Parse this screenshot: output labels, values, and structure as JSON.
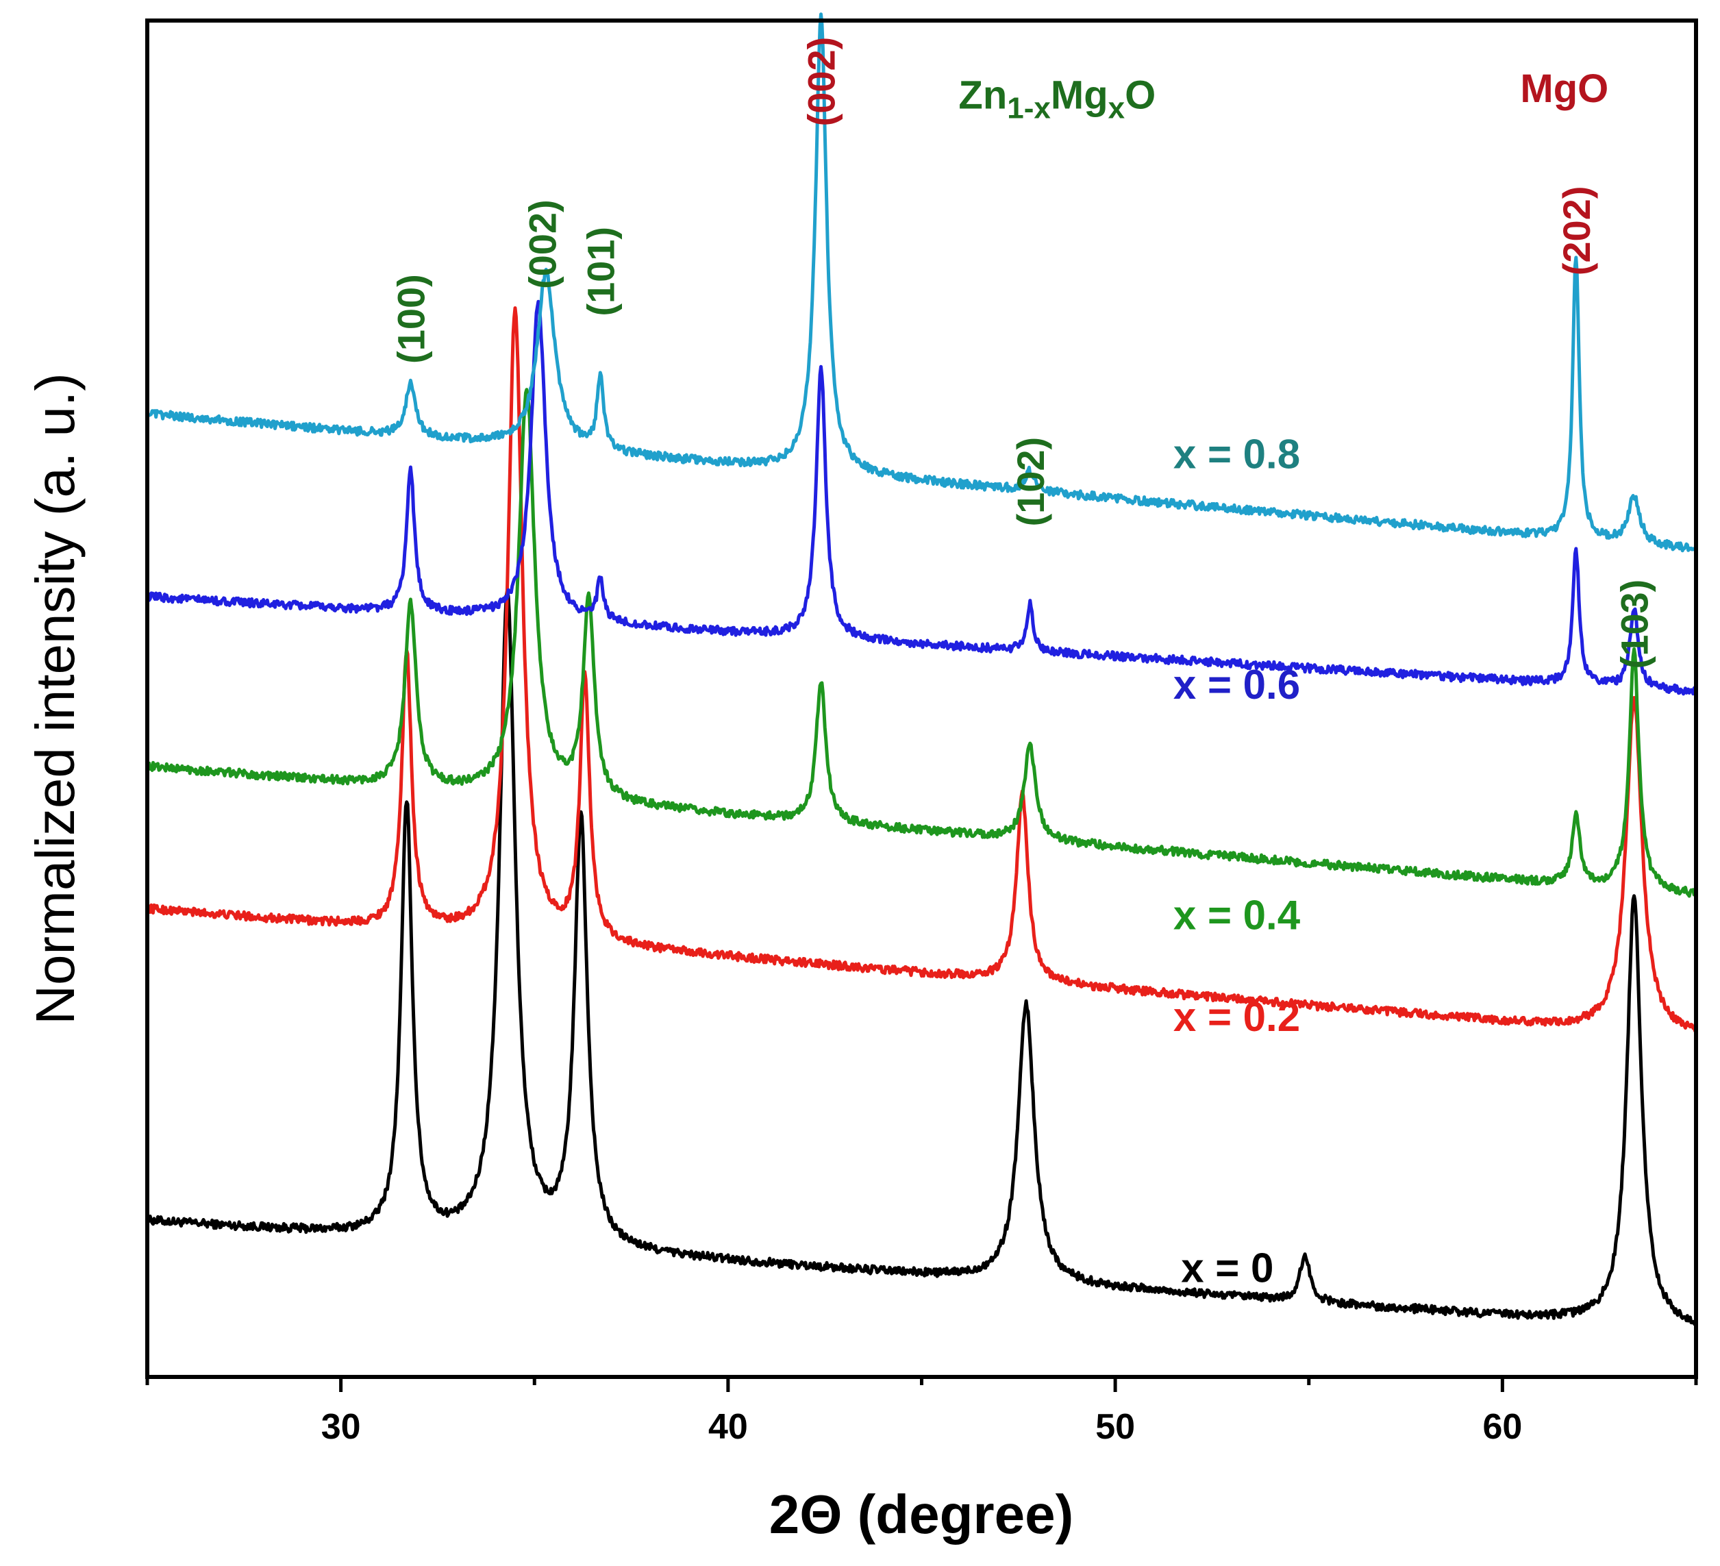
{
  "chart_data": {
    "type": "line",
    "title": "",
    "xlabel": "2Θ (degree)",
    "ylabel": "Normalized intensity (a. u.)",
    "xlim": [
      25,
      65
    ],
    "x_ticks": [
      30,
      40,
      50,
      60
    ],
    "grid": false,
    "legend": "none",
    "baseline_range": [
      0,
      10
    ],
    "series": [
      {
        "name": "x = 0",
        "color": "#000000",
        "baseline": [
          1.15,
          0.35
        ],
        "peaks": [
          [
            31.7,
            3.2,
            0.35
          ],
          [
            34.3,
            4.8,
            0.5
          ],
          [
            36.2,
            3.15,
            0.4
          ],
          [
            47.7,
            2.05,
            0.5
          ],
          [
            54.9,
            0.35,
            0.3
          ],
          [
            63.4,
            3.15,
            0.45
          ]
        ]
      },
      {
        "name": "x = 0.2",
        "color": "#e8201a",
        "baseline": [
          3.45,
          2.5
        ],
        "peaks": [
          [
            31.7,
            2.05,
            0.3
          ],
          [
            34.5,
            4.65,
            0.45
          ],
          [
            36.3,
            1.95,
            0.3
          ],
          [
            47.6,
            1.4,
            0.35
          ],
          [
            63.4,
            2.45,
            0.5
          ]
        ]
      },
      {
        "name": "x = 0.4",
        "color": "#1e961e",
        "baseline": [
          4.5,
          3.55
        ],
        "peaks": [
          [
            31.8,
            1.35,
            0.35
          ],
          [
            34.8,
            3.0,
            0.5
          ],
          [
            36.4,
            1.45,
            0.35
          ],
          [
            42.4,
            1.05,
            0.3
          ],
          [
            47.8,
            0.7,
            0.35
          ],
          [
            61.9,
            0.5,
            0.25
          ],
          [
            63.4,
            1.75,
            0.3
          ]
        ]
      },
      {
        "name": "x = 0.6",
        "color": "#2020e0",
        "baseline": [
          5.75,
          5.05
        ],
        "peaks": [
          [
            31.8,
            1.05,
            0.25
          ],
          [
            35.1,
            2.35,
            0.45
          ],
          [
            36.7,
            0.3,
            0.2
          ],
          [
            42.4,
            2.0,
            0.3
          ],
          [
            47.8,
            0.35,
            0.2
          ],
          [
            61.9,
            1.0,
            0.2
          ],
          [
            63.4,
            0.6,
            0.25
          ]
        ]
      },
      {
        "name": "x = 0.8",
        "color": "#20a0cc",
        "baseline": [
          7.1,
          6.1
        ],
        "peaks": [
          [
            31.8,
            0.4,
            0.3
          ],
          [
            35.3,
            1.3,
            0.55
          ],
          [
            36.7,
            0.55,
            0.2
          ],
          [
            42.4,
            3.35,
            0.35
          ],
          [
            47.8,
            0.15,
            0.3
          ],
          [
            61.9,
            2.1,
            0.2
          ],
          [
            63.4,
            0.35,
            0.35
          ]
        ]
      }
    ],
    "annotations": [
      {
        "text": "(100)",
        "x": 31.8,
        "y": 7.8,
        "color": "#1e6e1e",
        "rotate": true
      },
      {
        "text": "(002)",
        "x": 35.2,
        "y": 8.35,
        "color": "#1e6e1e",
        "rotate": true
      },
      {
        "text": "(101)",
        "x": 36.7,
        "y": 8.15,
        "color": "#1e6e1e",
        "rotate": true
      },
      {
        "text": "(002)",
        "x": 42.4,
        "y": 9.55,
        "color": "#b4141e",
        "rotate": true
      },
      {
        "text": "(102)",
        "x": 47.8,
        "y": 6.6,
        "color": "#1e6e1e",
        "rotate": true
      },
      {
        "text": "(202)",
        "x": 61.9,
        "y": 8.45,
        "color": "#b4141e",
        "rotate": true
      },
      {
        "text": "(103)",
        "x": 63.4,
        "y": 5.55,
        "color": "#1e6e1e",
        "rotate": true
      }
    ],
    "phase_labels": [
      {
        "text": "Zn1-xMgxO",
        "x": 48.5,
        "y": 9.35,
        "color": "#1e6e1e"
      },
      {
        "text": "MgO",
        "x": 61.6,
        "y": 9.4,
        "color": "#b4141e"
      }
    ],
    "series_labels": [
      {
        "text": "x = 0.8",
        "x": 51.5,
        "y": 6.7,
        "color": "#1e8080"
      },
      {
        "text": "x = 0.6",
        "x": 51.5,
        "y": 5.0,
        "color": "#2020c8"
      },
      {
        "text": "x = 0.4",
        "x": 51.5,
        "y": 3.3,
        "color": "#1e961e"
      },
      {
        "text": "x = 0.2",
        "x": 51.5,
        "y": 2.55,
        "color": "#e8201a"
      },
      {
        "text": "x = 0",
        "x": 51.7,
        "y": 0.7,
        "color": "#000000"
      }
    ]
  }
}
